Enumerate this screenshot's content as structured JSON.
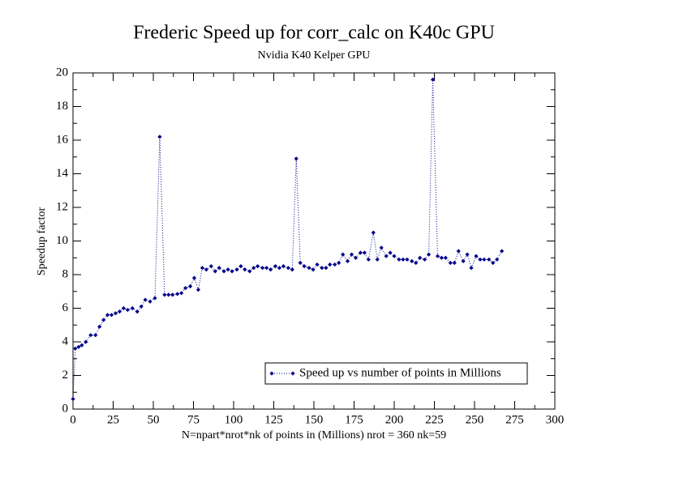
{
  "chart_data": {
    "type": "line",
    "title": "Frederic Speed up for corr_calc on K40c GPU",
    "subtitle": "Nvidia K40 Kelper GPU",
    "x_label": "N=npart*nrot*nk of points in (Millions) nrot = 360 nk=59",
    "y_label": "Speedup factor",
    "x": [
      0,
      1.4,
      3.5,
      5.5,
      8,
      11,
      14,
      16.5,
      19,
      21.5,
      24,
      26.5,
      29,
      31.5,
      34,
      37,
      40,
      42.5,
      45,
      48,
      51,
      54,
      57,
      59.5,
      62,
      65,
      67.5,
      70,
      73,
      75.5,
      78,
      80.5,
      83,
      86,
      88.5,
      91,
      94,
      96.5,
      99,
      102,
      104.5,
      107,
      110,
      112.5,
      115,
      118,
      120.5,
      123,
      126,
      128.5,
      131,
      134,
      136.5,
      139,
      141.5,
      144,
      147,
      149.5,
      152,
      155,
      157.5,
      160,
      163,
      165.5,
      168,
      171,
      173.5,
      176,
      179,
      181.5,
      184,
      187,
      189.5,
      192,
      195,
      197.5,
      200,
      203,
      205.5,
      208,
      211,
      213.5,
      216,
      219,
      221.5,
      224,
      227,
      229.5,
      232,
      235,
      237.5,
      240,
      243,
      245.5,
      248,
      251,
      253.5,
      256,
      259,
      261.5,
      264,
      267
    ],
    "series": [
      {
        "name": "Speed up vs number of points in Millions",
        "color": "#00008b",
        "marker": "diamond",
        "line_style": "dotted",
        "values": [
          0.6,
          3.6,
          3.7,
          3.8,
          4.0,
          4.4,
          4.4,
          4.9,
          5.3,
          5.6,
          5.6,
          5.7,
          5.8,
          6.0,
          5.9,
          6.0,
          5.8,
          6.1,
          6.5,
          6.4,
          6.6,
          16.2,
          6.8,
          6.8,
          6.8,
          6.85,
          6.9,
          7.2,
          7.3,
          7.8,
          7.1,
          8.4,
          8.3,
          8.5,
          8.2,
          8.4,
          8.2,
          8.3,
          8.2,
          8.3,
          8.5,
          8.3,
          8.2,
          8.4,
          8.5,
          8.4,
          8.4,
          8.3,
          8.5,
          8.4,
          8.5,
          8.4,
          8.3,
          14.9,
          8.7,
          8.5,
          8.4,
          8.3,
          8.6,
          8.4,
          8.4,
          8.6,
          8.6,
          8.7,
          9.2,
          8.8,
          9.2,
          9.0,
          9.3,
          9.3,
          8.9,
          10.5,
          8.9,
          9.6,
          9.1,
          9.3,
          9.1,
          8.9,
          8.9,
          8.9,
          8.8,
          8.7,
          9.0,
          8.9,
          9.2,
          19.6,
          9.1,
          9.0,
          9.0,
          8.7,
          8.7,
          9.4,
          8.8,
          9.2,
          8.4,
          9.1,
          8.9,
          8.9,
          8.9,
          8.7,
          8.9,
          9.4
        ]
      }
    ],
    "xlim": [
      0,
      300
    ],
    "xticks": [
      0,
      25,
      50,
      75,
      100,
      125,
      150,
      175,
      200,
      225,
      250,
      275,
      300
    ],
    "ylim": [
      0,
      20
    ],
    "yticks": [
      0,
      2,
      4,
      6,
      8,
      10,
      12,
      14,
      16,
      18,
      20
    ],
    "minor_ticks": true,
    "legend": "lower right"
  }
}
